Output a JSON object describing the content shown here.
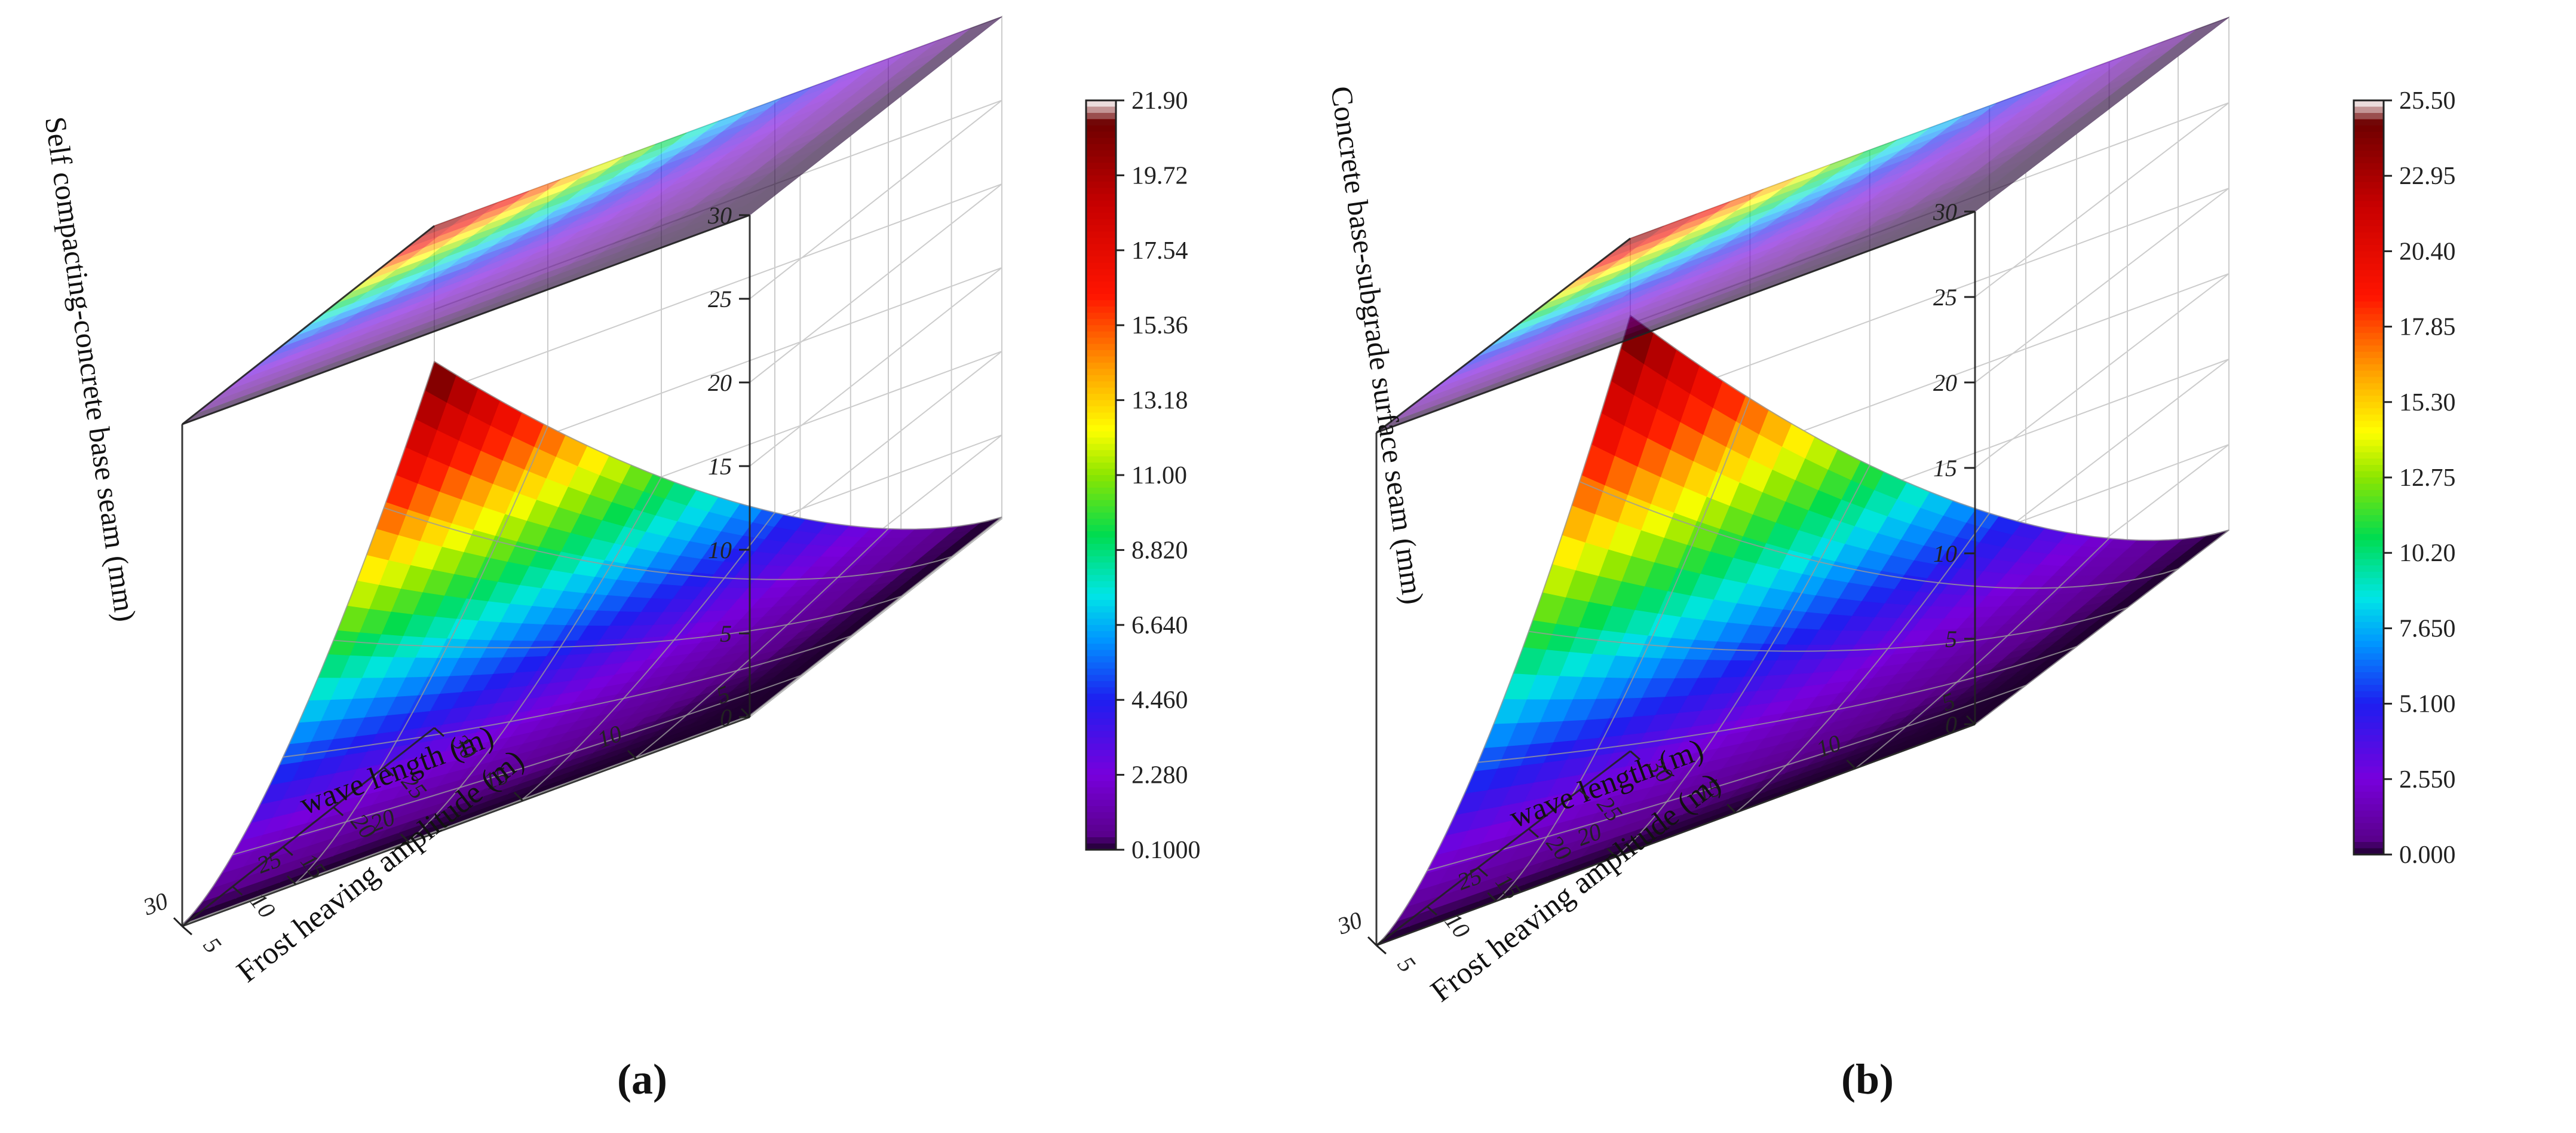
{
  "chart_data": [
    {
      "panel": "a",
      "type": "3d-surface",
      "zlabel": "Self compacting-concrete base seam (mm)",
      "xlabel": "wave length (m)",
      "ylabel": "Frost heaving amplitude (m)",
      "xticks": [
        "5",
        "10",
        "15",
        "20",
        "25",
        "30"
      ],
      "yticks": [
        "5",
        "10",
        "15",
        "20",
        "25",
        "30"
      ],
      "zticks": [
        "0",
        "5",
        "10",
        "15",
        "20",
        "25",
        "30"
      ],
      "zlim": [
        0,
        30
      ],
      "colorbar": {
        "min": 0.1,
        "max": 21.9,
        "tick_labels": [
          "21.90",
          "19.72",
          "17.54",
          "15.36",
          "13.18",
          "11.00",
          "8.820",
          "6.640",
          "4.460",
          "2.280",
          "0.1000"
        ]
      },
      "surface_peak": {
        "wave_length": 5,
        "frost_heaving_amplitude": 30,
        "value": 21.9
      },
      "projection": "filled contour map on top plane",
      "caption": "(a)"
    },
    {
      "panel": "b",
      "type": "3d-surface",
      "zlabel": "Concrete base-subgrade surface seam (mm)",
      "xlabel": "wave length (m)",
      "ylabel": "Frost heaving amplitude (m)",
      "xticks": [
        "5",
        "10",
        "15",
        "20",
        "25",
        "30"
      ],
      "yticks": [
        "5",
        "10",
        "15",
        "20",
        "25",
        "30"
      ],
      "zticks": [
        "0",
        "5",
        "10",
        "15",
        "20",
        "25",
        "30"
      ],
      "zlim": [
        0,
        30
      ],
      "colorbar": {
        "min": 0.0,
        "max": 25.5,
        "tick_labels": [
          "25.50",
          "22.95",
          "20.40",
          "17.85",
          "15.30",
          "12.75",
          "10.20",
          "7.650",
          "5.100",
          "2.550",
          "0.000"
        ]
      },
      "surface_peak": {
        "wave_length": 5,
        "frost_heaving_amplitude": 30,
        "value": 25.5
      },
      "projection": "filled contour map on top plane",
      "caption": "(b)"
    }
  ]
}
